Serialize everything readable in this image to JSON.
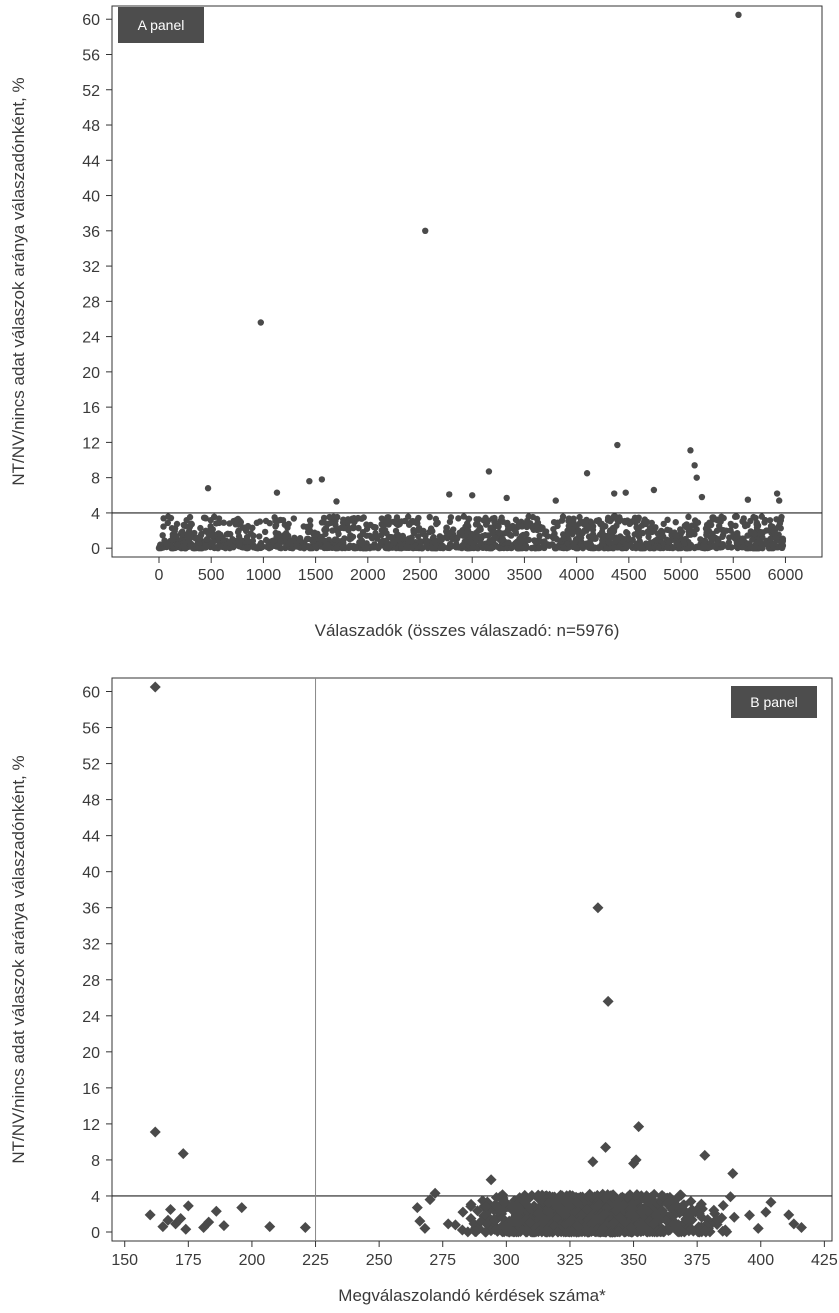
{
  "chart_data": [
    {
      "type": "scatter",
      "panel_label": "A panel",
      "title": "",
      "xlabel": "Válaszadók (összes válaszadó: n=5976)",
      "ylabel": "NT/NV/nincs adat válaszok aránya válaszadónként, %",
      "xlim": [
        -450,
        6350
      ],
      "ylim": [
        -1,
        61.5
      ],
      "x_ticks": [
        "0",
        "500",
        "1000",
        "1500",
        "2000",
        "2500",
        "3000",
        "3500",
        "4000",
        "4500",
        "5000",
        "5500",
        "6000"
      ],
      "y_ticks": [
        "0",
        "4",
        "8",
        "12",
        "16",
        "20",
        "24",
        "28",
        "32",
        "36",
        "40",
        "44",
        "48",
        "52",
        "56",
        "60"
      ],
      "reference_line_y": 4,
      "marker": "circle",
      "color": "#4a4a4a",
      "outliers": [
        {
          "x": 470,
          "y": 6.8
        },
        {
          "x": 975,
          "y": 25.6
        },
        {
          "x": 1130,
          "y": 6.3
        },
        {
          "x": 1440,
          "y": 7.6
        },
        {
          "x": 1560,
          "y": 7.8
        },
        {
          "x": 1700,
          "y": 5.3
        },
        {
          "x": 2550,
          "y": 36.0
        },
        {
          "x": 2780,
          "y": 6.1
        },
        {
          "x": 3000,
          "y": 6.0
        },
        {
          "x": 3160,
          "y": 8.7
        },
        {
          "x": 3330,
          "y": 5.7
        },
        {
          "x": 3800,
          "y": 5.4
        },
        {
          "x": 4100,
          "y": 8.5
        },
        {
          "x": 4360,
          "y": 6.2
        },
        {
          "x": 4390,
          "y": 11.7
        },
        {
          "x": 4470,
          "y": 6.3
        },
        {
          "x": 4740,
          "y": 6.6
        },
        {
          "x": 5090,
          "y": 11.1
        },
        {
          "x": 5130,
          "y": 9.4
        },
        {
          "x": 5150,
          "y": 8.0
        },
        {
          "x": 5200,
          "y": 5.8
        },
        {
          "x": 5550,
          "y": 60.5
        },
        {
          "x": 5640,
          "y": 5.5
        },
        {
          "x": 5920,
          "y": 6.2
        },
        {
          "x": 5940,
          "y": 5.4
        }
      ],
      "bulk": {
        "n": 5976,
        "x_range": [
          0,
          5976
        ],
        "typical_y_range": [
          0,
          4
        ]
      }
    },
    {
      "type": "scatter",
      "panel_label": "B panel",
      "title": "",
      "xlabel": "Megválaszolandó kérdések száma*",
      "ylabel": "NT/NV/nincs adat válaszok aránya válaszadónként, %",
      "xlim": [
        145,
        428
      ],
      "ylim": [
        -1,
        61.5
      ],
      "x_ticks": [
        "150",
        "175",
        "200",
        "225",
        "250",
        "275",
        "300",
        "325",
        "350",
        "375",
        "400",
        "425"
      ],
      "y_ticks": [
        "0",
        "4",
        "8",
        "12",
        "16",
        "20",
        "24",
        "28",
        "32",
        "36",
        "40",
        "44",
        "48",
        "52",
        "56",
        "60"
      ],
      "reference_line_y": 4,
      "reference_line_x": 225,
      "marker": "diamond",
      "color": "#4a4a4a",
      "outliers": [
        {
          "x": 162,
          "y": 60.5
        },
        {
          "x": 162,
          "y": 11.1
        },
        {
          "x": 173,
          "y": 8.7
        },
        {
          "x": 336,
          "y": 36.0
        },
        {
          "x": 340,
          "y": 25.6
        },
        {
          "x": 352,
          "y": 11.7
        },
        {
          "x": 339,
          "y": 9.4
        },
        {
          "x": 378,
          "y": 8.5
        },
        {
          "x": 351,
          "y": 8.0
        },
        {
          "x": 350,
          "y": 7.6
        },
        {
          "x": 334,
          "y": 7.8
        },
        {
          "x": 389,
          "y": 6.5
        },
        {
          "x": 294,
          "y": 5.8
        },
        {
          "x": 160,
          "y": 1.9
        },
        {
          "x": 165,
          "y": 0.6
        },
        {
          "x": 167,
          "y": 1.3
        },
        {
          "x": 168,
          "y": 2.5
        },
        {
          "x": 170,
          "y": 0.9
        },
        {
          "x": 172,
          "y": 1.5
        },
        {
          "x": 174,
          "y": 0.3
        },
        {
          "x": 175,
          "y": 2.9
        },
        {
          "x": 181,
          "y": 0.5
        },
        {
          "x": 183,
          "y": 1.1
        },
        {
          "x": 186,
          "y": 2.3
        },
        {
          "x": 189,
          "y": 0.7
        },
        {
          "x": 196,
          "y": 2.7
        },
        {
          "x": 207,
          "y": 0.6
        },
        {
          "x": 221,
          "y": 0.5
        },
        {
          "x": 265,
          "y": 2.7
        },
        {
          "x": 266,
          "y": 1.2
        },
        {
          "x": 268,
          "y": 0.4
        },
        {
          "x": 270,
          "y": 3.6
        },
        {
          "x": 272,
          "y": 4.3
        },
        {
          "x": 411,
          "y": 1.9
        },
        {
          "x": 413,
          "y": 0.9
        },
        {
          "x": 416,
          "y": 0.5
        },
        {
          "x": 404,
          "y": 3.3
        },
        {
          "x": 402,
          "y": 2.2
        },
        {
          "x": 399,
          "y": 0.4
        }
      ],
      "bulk": {
        "x_range": [
          265,
          400
        ],
        "typical_y_range": [
          0,
          4
        ]
      }
    }
  ]
}
